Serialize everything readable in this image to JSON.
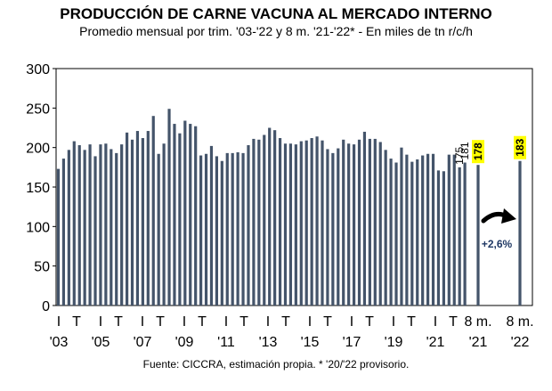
{
  "title": "PRODUCCIÓN DE CARNE VACUNA AL MERCADO INTERNO",
  "subtitle": "Promedio mensual por trim. '03-'22 y 8 m. '21-'22* - En miles de tn r/c/h",
  "source": "Fuente: CICCRA, estimación propia. * '20/'22 provisorio.",
  "chart_data": {
    "type": "bar",
    "ylim": [
      0,
      300
    ],
    "yticks": [
      0,
      50,
      100,
      150,
      200,
      250,
      300
    ],
    "grid": false,
    "bar_color": "#44546a",
    "label_highlight_color": "#ffff00",
    "quarterly_values": [
      173,
      186,
      197,
      208,
      203,
      197,
      204,
      189,
      204,
      205,
      198,
      193,
      204,
      219,
      210,
      221,
      212,
      221,
      240,
      192,
      205,
      249,
      230,
      218,
      234,
      230,
      227,
      190,
      192,
      202,
      189,
      183,
      193,
      193,
      194,
      193,
      203,
      211,
      210,
      216,
      225,
      222,
      212,
      205,
      205,
      204,
      208,
      209,
      212,
      214,
      209,
      198,
      193,
      199,
      210,
      205,
      204,
      210,
      220,
      211,
      211,
      207,
      197,
      186,
      181,
      200,
      191,
      182,
      185,
      190,
      192,
      192,
      171,
      170,
      191,
      191,
      175,
      181
    ],
    "bar_labels": [
      {
        "index": 76,
        "text": "175",
        "highlight": false
      },
      {
        "index": 77,
        "text": "181",
        "highlight": false
      }
    ],
    "eight_month": [
      {
        "label": "8 m.",
        "year": "'21",
        "value": 178,
        "text": "178"
      },
      {
        "label": "8 m.",
        "year": "'22",
        "value": 183,
        "text": "183"
      }
    ],
    "x_top_labels": [
      "I",
      "T",
      "I",
      "T",
      "I",
      "T",
      "I",
      "T",
      "I",
      "T",
      "I",
      "T",
      "I",
      "T",
      "I",
      "T",
      "I",
      "T",
      "I",
      "T"
    ],
    "x_year_labels": [
      "'03",
      "'05",
      "'07",
      "'09",
      "'11",
      "'13",
      "'15",
      "'17",
      "'19",
      "'21"
    ],
    "annotation": "+2,6%"
  }
}
